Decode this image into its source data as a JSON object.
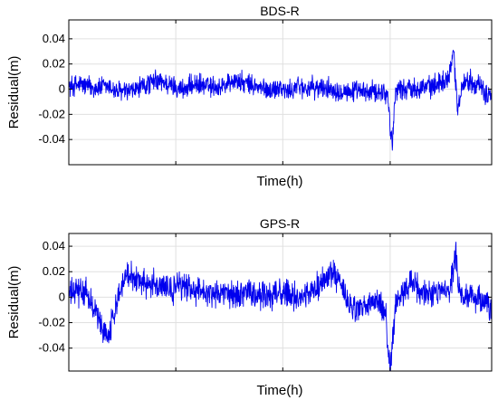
{
  "colors": {
    "series": "#0000ee",
    "grid": "#e0e0e0",
    "axis": "#000000"
  },
  "chart_data": [
    {
      "type": "line",
      "title": "BDS-R",
      "xlabel": "Time(h)",
      "ylabel": "Residual(m)",
      "ylim": [
        -0.06,
        0.055
      ],
      "yticks": [
        0.04,
        0.02,
        0,
        -0.02,
        -0.04
      ],
      "ytick_labels": [
        "0.04",
        "0.02",
        "0",
        "-0.02",
        "-0.04"
      ],
      "xlim": [
        0,
        1
      ],
      "xgrid": [
        0.253,
        0.506,
        0.76
      ],
      "grid": true,
      "series": [
        {
          "color": "#0000ee",
          "noise": 0.007,
          "points": [
            [
              0.0,
              0.002
            ],
            [
              0.03,
              0.004
            ],
            [
              0.06,
              0.001
            ],
            [
              0.09,
              0.002
            ],
            [
              0.12,
              -0.002
            ],
            [
              0.15,
              -0.002
            ],
            [
              0.18,
              0.003
            ],
            [
              0.21,
              0.007
            ],
            [
              0.24,
              0.003
            ],
            [
              0.27,
              0.0
            ],
            [
              0.3,
              0.004
            ],
            [
              0.33,
              0.002
            ],
            [
              0.36,
              0.002
            ],
            [
              0.39,
              0.007
            ],
            [
              0.42,
              0.004
            ],
            [
              0.45,
              0.001
            ],
            [
              0.48,
              -0.001
            ],
            [
              0.5,
              0.002
            ],
            [
              0.52,
              -0.003
            ],
            [
              0.54,
              0.003
            ],
            [
              0.56,
              0.001
            ],
            [
              0.6,
              0.001
            ],
            [
              0.65,
              -0.001
            ],
            [
              0.7,
              -0.003
            ],
            [
              0.74,
              -0.001
            ],
            [
              0.755,
              -0.006
            ],
            [
              0.76,
              -0.03
            ],
            [
              0.765,
              -0.045
            ],
            [
              0.77,
              -0.012
            ],
            [
              0.775,
              0.001
            ],
            [
              0.8,
              0.0
            ],
            [
              0.83,
              0.002
            ],
            [
              0.86,
              0.002
            ],
            [
              0.88,
              0.006
            ],
            [
              0.9,
              0.01
            ],
            [
              0.905,
              0.024
            ],
            [
              0.91,
              0.032
            ],
            [
              0.915,
              0.004
            ],
            [
              0.92,
              -0.018
            ],
            [
              0.93,
              0.005
            ],
            [
              0.95,
              0.007
            ],
            [
              0.97,
              0.003
            ],
            [
              0.985,
              -0.005
            ],
            [
              1.0,
              -0.002
            ]
          ]
        }
      ]
    },
    {
      "type": "line",
      "title": "GPS-R",
      "xlabel": "Time(h)",
      "ylabel": "Residual(m)",
      "ylim": [
        -0.058,
        0.05
      ],
      "yticks": [
        0.04,
        0.02,
        0,
        -0.02,
        -0.04
      ],
      "ytick_labels": [
        "0.04",
        "0.02",
        "0",
        "-0.02",
        "-0.04"
      ],
      "xlim": [
        0,
        1
      ],
      "xgrid": [
        0.253,
        0.506,
        0.76
      ],
      "grid": true,
      "series": [
        {
          "color": "#0000ee",
          "noise": 0.009,
          "points": [
            [
              0.0,
              0.002
            ],
            [
              0.02,
              0.005
            ],
            [
              0.04,
              0.003
            ],
            [
              0.06,
              -0.008
            ],
            [
              0.08,
              -0.025
            ],
            [
              0.09,
              -0.03
            ],
            [
              0.1,
              -0.022
            ],
            [
              0.12,
              0.005
            ],
            [
              0.14,
              0.02
            ],
            [
              0.16,
              0.015
            ],
            [
              0.18,
              0.01
            ],
            [
              0.2,
              0.012
            ],
            [
              0.22,
              0.008
            ],
            [
              0.24,
              0.005
            ],
            [
              0.26,
              0.01
            ],
            [
              0.28,
              0.008
            ],
            [
              0.3,
              0.006
            ],
            [
              0.33,
              0.004
            ],
            [
              0.36,
              0.003
            ],
            [
              0.39,
              0.002
            ],
            [
              0.42,
              0.003
            ],
            [
              0.45,
              0.001
            ],
            [
              0.48,
              0.002
            ],
            [
              0.5,
              0.004
            ],
            [
              0.53,
              0.0
            ],
            [
              0.56,
              0.002
            ],
            [
              0.58,
              0.006
            ],
            [
              0.6,
              0.012
            ],
            [
              0.62,
              0.02
            ],
            [
              0.64,
              0.012
            ],
            [
              0.66,
              -0.005
            ],
            [
              0.68,
              -0.01
            ],
            [
              0.7,
              -0.008
            ],
            [
              0.72,
              -0.004
            ],
            [
              0.74,
              -0.007
            ],
            [
              0.75,
              -0.015
            ],
            [
              0.755,
              -0.045
            ],
            [
              0.76,
              -0.057
            ],
            [
              0.765,
              -0.03
            ],
            [
              0.775,
              -0.005
            ],
            [
              0.8,
              0.008
            ],
            [
              0.83,
              0.004
            ],
            [
              0.82,
              0.01
            ],
            [
              0.85,
              0.002
            ],
            [
              0.88,
              0.003
            ],
            [
              0.9,
              0.005
            ],
            [
              0.91,
              0.02
            ],
            [
              0.915,
              0.04
            ],
            [
              0.92,
              0.01
            ],
            [
              0.93,
              -0.005
            ],
            [
              0.95,
              0.003
            ],
            [
              0.98,
              -0.005
            ],
            [
              1.0,
              -0.008
            ]
          ]
        }
      ]
    }
  ]
}
